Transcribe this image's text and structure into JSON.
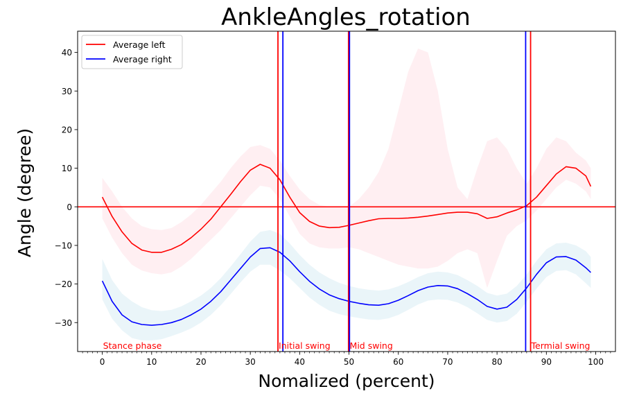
{
  "chart_data": {
    "type": "line",
    "title": "AnkleAngles_rotation",
    "xlabel": "Nomalized (percent)",
    "ylabel": "Angle (degree)",
    "xlim": [
      -5,
      104
    ],
    "ylim": [
      -37.5,
      45.5
    ],
    "xticks": [
      0,
      10,
      20,
      30,
      40,
      50,
      60,
      70,
      80,
      90,
      100
    ],
    "yticks": [
      -30,
      -20,
      -10,
      0,
      10,
      20,
      30,
      40
    ],
    "x": [
      0,
      2,
      4,
      6,
      8,
      10,
      12,
      14,
      16,
      18,
      20,
      22,
      24,
      26,
      28,
      30,
      32,
      34,
      36,
      38,
      40,
      42,
      44,
      46,
      48,
      50,
      52,
      54,
      56,
      58,
      60,
      62,
      64,
      66,
      68,
      70,
      72,
      74,
      76,
      78,
      80,
      82,
      84,
      86,
      88,
      90,
      92,
      94,
      96,
      98,
      99
    ],
    "series": [
      {
        "name": "Average left",
        "color": "#ff0000",
        "values": [
          2.5,
          -2.5,
          -6.5,
          -9.5,
          -11.2,
          -11.8,
          -11.8,
          -11,
          -9.8,
          -8,
          -5.8,
          -3.2,
          0,
          3.2,
          6.5,
          9.5,
          11,
          10,
          7,
          2.5,
          -1.5,
          -3.8,
          -5,
          -5.4,
          -5.3,
          -4.8,
          -4.2,
          -3.6,
          -3.1,
          -3,
          -3,
          -2.9,
          -2.7,
          -2.4,
          -2,
          -1.6,
          -1.4,
          -1.4,
          -1.8,
          -3,
          -2.6,
          -1.6,
          -0.8,
          0.3,
          2.5,
          5.5,
          8.5,
          10.4,
          10,
          8,
          5.3
        ],
        "band_upper": [
          7.5,
          4,
          0,
          -3,
          -5,
          -5.8,
          -6,
          -5.5,
          -4,
          -2,
          0.5,
          3.5,
          6.5,
          10,
          13,
          15.5,
          16,
          15,
          12,
          8,
          4.5,
          2,
          0.5,
          0,
          0,
          0,
          2,
          5,
          9,
          15,
          25,
          35,
          41,
          40,
          30,
          15,
          5,
          2,
          10,
          17,
          18,
          15,
          10,
          6,
          10,
          15,
          18,
          17,
          14,
          12,
          10
        ],
        "band_lower": [
          -3,
          -8,
          -12,
          -15,
          -16.5,
          -17.2,
          -17.5,
          -17,
          -15.5,
          -13.5,
          -11,
          -8.5,
          -6,
          -3,
          0,
          3,
          5.5,
          5,
          2,
          -2.5,
          -7,
          -9.5,
          -10.5,
          -10.8,
          -10.8,
          -10.5,
          -11,
          -12,
          -13,
          -14,
          -15,
          -15.5,
          -16,
          -16,
          -15.5,
          -14,
          -12,
          -11,
          -12,
          -21,
          -14,
          -7.5,
          -5,
          -3.5,
          -1,
          2,
          5,
          7,
          6,
          4,
          2
        ]
      },
      {
        "name": "Average right",
        "color": "#0000ff",
        "values": [
          -19.2,
          -24.5,
          -28,
          -29.8,
          -30.5,
          -30.7,
          -30.5,
          -30,
          -29.2,
          -28,
          -26.5,
          -24.5,
          -22,
          -19,
          -16,
          -13,
          -10.8,
          -10.6,
          -11.8,
          -14,
          -16.8,
          -19.3,
          -21.3,
          -22.8,
          -23.8,
          -24.5,
          -25,
          -25.4,
          -25.5,
          -25.1,
          -24.2,
          -23,
          -21.7,
          -20.8,
          -20.4,
          -20.5,
          -21.2,
          -22.5,
          -24,
          -25.8,
          -26.5,
          -26,
          -24,
          -21,
          -17.5,
          -14.5,
          -13,
          -12.9,
          -13.8,
          -15.8,
          -17
        ]
      }
    ],
    "right_band": {
      "band_upper": [
        -13.5,
        -19,
        -22.5,
        -24.5,
        -26,
        -26.8,
        -27,
        -26.7,
        -25.8,
        -24.5,
        -23,
        -21,
        -18.5,
        -15.5,
        -12.3,
        -9,
        -6.5,
        -6,
        -7,
        -9.5,
        -12.5,
        -15,
        -17,
        -18.5,
        -19.7,
        -20.5,
        -21.1,
        -21.5,
        -21.7,
        -21.4,
        -20.6,
        -19.5,
        -18.2,
        -17.2,
        -16.8,
        -17,
        -17.7,
        -19,
        -20.5,
        -22.3,
        -23,
        -22.5,
        -20.5,
        -17.5,
        -14,
        -11,
        -9.5,
        -9.3,
        -10,
        -11.5,
        -13
      ],
      "band_lower": [
        -24,
        -29,
        -32,
        -34,
        -34.6,
        -34.6,
        -34.3,
        -33.5,
        -32.6,
        -31.5,
        -30,
        -28,
        -25.5,
        -22.6,
        -19.6,
        -16.8,
        -15,
        -15,
        -16.5,
        -18.5,
        -21,
        -23.5,
        -25.4,
        -26.9,
        -27.8,
        -28.4,
        -28.8,
        -29.2,
        -29.3,
        -28.9,
        -28,
        -26.7,
        -25.3,
        -24.3,
        -24,
        -24.1,
        -24.8,
        -26,
        -27.6,
        -29.3,
        -30,
        -29.6,
        -27.7,
        -24.6,
        -21.2,
        -18.2,
        -16.6,
        -16.4,
        -17.5,
        -19.8,
        -21
      ]
    },
    "band_colors": {
      "left": "#ffc0cb",
      "right": "#add8e6"
    },
    "hline": {
      "y": 0,
      "color": "#ff0000"
    },
    "vlines": [
      {
        "x": 35.6,
        "color": "#ff0000"
      },
      {
        "x": 36.6,
        "color": "#0000ff"
      },
      {
        "x": 49.9,
        "color": "#ff0000"
      },
      {
        "x": 50.1,
        "color": "#0000ff"
      },
      {
        "x": 85.8,
        "color": "#0000ff"
      },
      {
        "x": 86.8,
        "color": "#ff0000"
      }
    ],
    "phase_labels": [
      {
        "text": "Stance phase",
        "x": 0
      },
      {
        "text": "Initial swing",
        "x": 35.6
      },
      {
        "text": "Mid swing",
        "x": 50
      },
      {
        "text": "Termial swing",
        "x": 86.8
      }
    ],
    "phase_label_color": "#ff0000",
    "grid": false,
    "legend_position": "top-left"
  }
}
